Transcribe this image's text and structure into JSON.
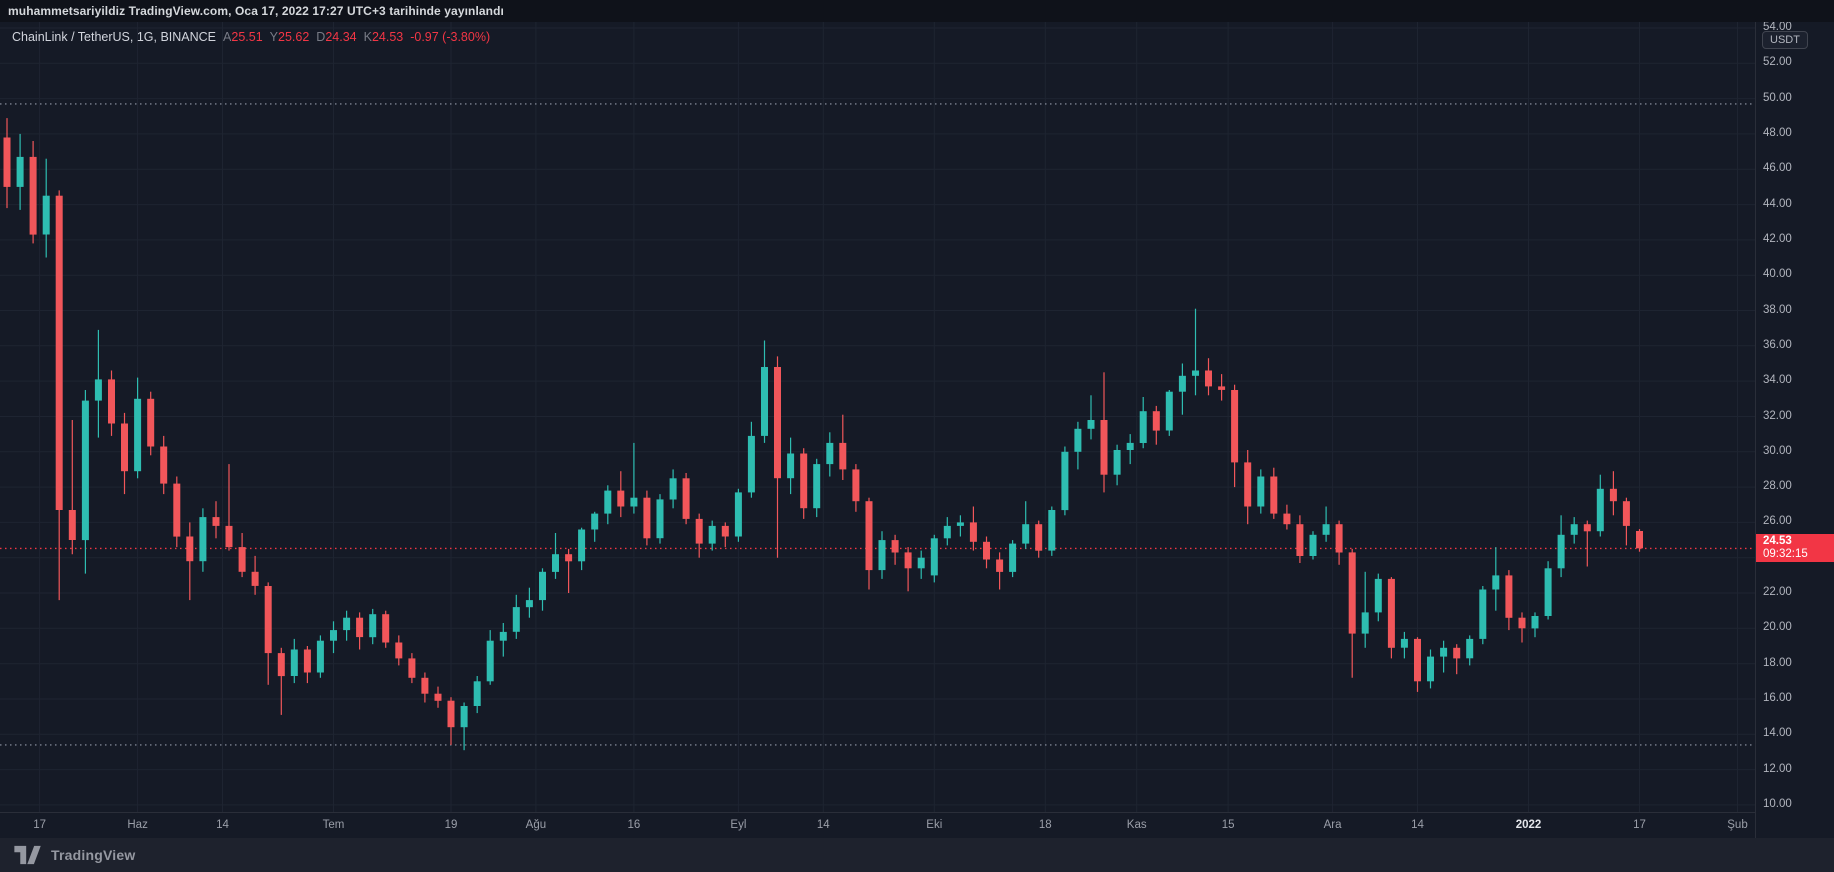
{
  "topbar": {
    "text": "muhammetsariyildiz TradingView.com, Oca 17, 2022 17:27 UTC+3 tarihinde yayınlandı"
  },
  "legend": {
    "symbol": "ChainLink / TetherUS, 1G, BINANCE",
    "ohlc": [
      {
        "k": "A",
        "v": "25.51"
      },
      {
        "k": "Y",
        "v": "25.62"
      },
      {
        "k": "D",
        "v": "24.34"
      },
      {
        "k": "K",
        "v": "24.53"
      }
    ],
    "change": "-0.97 (-3.80%)"
  },
  "price_axis": {
    "currency": "USDT",
    "min": 10,
    "max": 54,
    "step": 2,
    "last_price": "24.53",
    "countdown": "09:32:15"
  },
  "levels": {
    "range_high_dotted": 49.7,
    "range_low_dotted": 13.4,
    "last_price_line": 24.53
  },
  "time_axis": [
    {
      "t": "17",
      "i": 2.5
    },
    {
      "t": "Haz",
      "i": 10
    },
    {
      "t": "14",
      "i": 16.5
    },
    {
      "t": "Tem",
      "i": 25
    },
    {
      "t": "19",
      "i": 34
    },
    {
      "t": "Ağu",
      "i": 40.5
    },
    {
      "t": "16",
      "i": 48
    },
    {
      "t": "Eyl",
      "i": 56
    },
    {
      "t": "14",
      "i": 62.5
    },
    {
      "t": "Eki",
      "i": 71
    },
    {
      "t": "18",
      "i": 79.5
    },
    {
      "t": "Kas",
      "i": 86.5
    },
    {
      "t": "15",
      "i": 93.5
    },
    {
      "t": "Ara",
      "i": 101.5
    },
    {
      "t": "14",
      "i": 108
    },
    {
      "t": "2022",
      "i": 116.5,
      "bright": true
    },
    {
      "t": "17",
      "i": 125
    },
    {
      "t": "Şub",
      "i": 132.5
    }
  ],
  "footer": {
    "brand": "TradingView"
  },
  "colors": {
    "up": "#2ebdb1",
    "down": "#f1565a",
    "accent_red": "#f23645",
    "grid": "#1e2431",
    "dotted_gray": "#7c8290",
    "bg": "#151a26"
  },
  "chart_data": {
    "type": "candlestick",
    "title": "ChainLink / TetherUS, 1G, BINANCE",
    "symbol": "LINK/USDT",
    "interval": "1G (daily, shown as 2-day aggregates)",
    "ylabel": "Price (USDT)",
    "ylim": [
      10,
      54
    ],
    "grid": true,
    "last": {
      "open": 25.51,
      "high": 25.62,
      "low": 24.34,
      "close": 24.53,
      "change": -0.97,
      "change_pct": -3.8
    },
    "candles": [
      [
        "2021-05-12",
        47.8,
        48.9,
        43.8,
        45.0
      ],
      [
        "2021-05-14",
        45.0,
        48.0,
        43.7,
        46.7
      ],
      [
        "2021-05-16",
        46.7,
        47.6,
        41.8,
        42.3
      ],
      [
        "2021-05-18",
        42.3,
        46.6,
        41.0,
        44.5
      ],
      [
        "2021-05-20",
        44.5,
        44.8,
        21.6,
        26.7
      ],
      [
        "2021-05-22",
        26.7,
        31.8,
        24.2,
        25.0
      ],
      [
        "2021-05-24",
        25.0,
        33.5,
        23.1,
        32.9
      ],
      [
        "2021-05-26",
        32.9,
        36.9,
        30.8,
        34.1
      ],
      [
        "2021-05-28",
        34.1,
        34.6,
        30.9,
        31.6
      ],
      [
        "2021-05-30",
        31.6,
        32.2,
        27.6,
        28.9
      ],
      [
        "2021-06-01",
        28.9,
        34.2,
        28.5,
        33.0
      ],
      [
        "2021-06-03",
        33.0,
        33.4,
        29.8,
        30.3
      ],
      [
        "2021-06-05",
        30.3,
        30.9,
        27.6,
        28.2
      ],
      [
        "2021-06-07",
        28.2,
        28.6,
        24.6,
        25.2
      ],
      [
        "2021-06-09",
        25.2,
        26.0,
        21.6,
        23.8
      ],
      [
        "2021-06-11",
        23.8,
        26.8,
        23.2,
        26.3
      ],
      [
        "2021-06-13",
        26.3,
        27.2,
        25.1,
        25.8
      ],
      [
        "2021-06-15",
        25.8,
        29.3,
        24.4,
        24.6
      ],
      [
        "2021-06-17",
        24.6,
        25.4,
        22.9,
        23.2
      ],
      [
        "2021-06-19",
        23.2,
        24.1,
        21.9,
        22.4
      ],
      [
        "2021-06-21",
        22.4,
        22.6,
        16.8,
        18.6
      ],
      [
        "2021-06-23",
        18.6,
        18.9,
        15.1,
        17.3
      ],
      [
        "2021-06-25",
        17.3,
        19.4,
        16.9,
        18.8
      ],
      [
        "2021-06-27",
        18.8,
        19.0,
        16.9,
        17.5
      ],
      [
        "2021-06-29",
        17.5,
        19.6,
        17.2,
        19.3
      ],
      [
        "2021-07-01",
        19.3,
        20.4,
        18.6,
        19.9
      ],
      [
        "2021-07-03",
        19.9,
        21.0,
        19.3,
        20.6
      ],
      [
        "2021-07-05",
        20.6,
        20.9,
        18.8,
        19.5
      ],
      [
        "2021-07-07",
        19.5,
        21.1,
        19.1,
        20.8
      ],
      [
        "2021-07-09",
        20.8,
        21.0,
        18.9,
        19.2
      ],
      [
        "2021-07-11",
        19.2,
        19.6,
        17.9,
        18.3
      ],
      [
        "2021-07-13",
        18.3,
        18.6,
        16.9,
        17.2
      ],
      [
        "2021-07-15",
        17.2,
        17.5,
        15.8,
        16.3
      ],
      [
        "2021-07-17",
        16.3,
        16.7,
        15.5,
        15.9
      ],
      [
        "2021-07-19",
        15.9,
        16.1,
        13.4,
        14.4
      ],
      [
        "2021-07-21",
        14.4,
        15.8,
        13.1,
        15.6
      ],
      [
        "2021-07-23",
        15.6,
        17.3,
        15.2,
        17.0
      ],
      [
        "2021-07-25",
        17.0,
        19.9,
        16.8,
        19.3
      ],
      [
        "2021-07-27",
        19.3,
        20.3,
        18.4,
        19.8
      ],
      [
        "2021-07-29",
        19.8,
        21.9,
        19.4,
        21.2
      ],
      [
        "2021-07-31",
        21.2,
        22.3,
        20.6,
        21.6
      ],
      [
        "2021-08-02",
        21.6,
        23.4,
        21.0,
        23.2
      ],
      [
        "2021-08-04",
        23.2,
        25.4,
        22.8,
        24.2
      ],
      [
        "2021-08-06",
        24.2,
        24.5,
        22.0,
        23.8
      ],
      [
        "2021-08-08",
        23.8,
        25.7,
        23.3,
        25.6
      ],
      [
        "2021-08-10",
        25.6,
        26.6,
        24.9,
        26.5
      ],
      [
        "2021-08-12",
        26.5,
        28.1,
        25.9,
        27.8
      ],
      [
        "2021-08-14",
        27.8,
        28.9,
        26.3,
        26.9
      ],
      [
        "2021-08-16",
        26.9,
        30.5,
        26.5,
        27.4
      ],
      [
        "2021-08-18",
        27.4,
        27.8,
        24.7,
        25.1
      ],
      [
        "2021-08-20",
        25.1,
        27.6,
        24.8,
        27.3
      ],
      [
        "2021-08-22",
        27.3,
        29.0,
        26.8,
        28.5
      ],
      [
        "2021-08-24",
        28.5,
        28.8,
        25.9,
        26.2
      ],
      [
        "2021-08-26",
        26.2,
        26.5,
        24.0,
        24.8
      ],
      [
        "2021-08-28",
        24.8,
        26.1,
        24.4,
        25.8
      ],
      [
        "2021-08-30",
        25.8,
        26.0,
        24.6,
        25.2
      ],
      [
        "2021-09-01",
        25.2,
        27.9,
        24.9,
        27.7
      ],
      [
        "2021-09-03",
        27.7,
        31.7,
        27.4,
        30.9
      ],
      [
        "2021-09-05",
        30.9,
        36.3,
        30.5,
        34.8
      ],
      [
        "2021-09-07",
        34.8,
        35.4,
        24.0,
        28.5
      ],
      [
        "2021-09-09",
        28.5,
        30.8,
        27.6,
        29.9
      ],
      [
        "2021-09-11",
        29.9,
        30.2,
        26.2,
        26.8
      ],
      [
        "2021-09-13",
        26.8,
        29.6,
        26.3,
        29.3
      ],
      [
        "2021-09-15",
        29.3,
        31.1,
        28.6,
        30.5
      ],
      [
        "2021-09-17",
        30.5,
        32.1,
        28.4,
        29.0
      ],
      [
        "2021-09-19",
        29.0,
        29.3,
        26.6,
        27.2
      ],
      [
        "2021-09-21",
        27.2,
        27.4,
        22.2,
        23.3
      ],
      [
        "2021-09-23",
        23.3,
        25.5,
        22.8,
        25.0
      ],
      [
        "2021-09-25",
        25.0,
        25.3,
        23.6,
        24.3
      ],
      [
        "2021-09-27",
        24.3,
        24.6,
        22.1,
        23.4
      ],
      [
        "2021-09-29",
        23.4,
        24.4,
        22.8,
        24.0
      ],
      [
        "2021-10-01",
        23.0,
        25.3,
        22.6,
        25.1
      ],
      [
        "2021-10-03",
        25.1,
        26.3,
        24.7,
        25.8
      ],
      [
        "2021-10-05",
        25.8,
        26.4,
        25.2,
        26.0
      ],
      [
        "2021-10-07",
        26.0,
        26.9,
        24.4,
        24.9
      ],
      [
        "2021-10-09",
        24.9,
        25.2,
        23.4,
        23.9
      ],
      [
        "2021-10-11",
        23.9,
        24.3,
        22.2,
        23.2
      ],
      [
        "2021-10-13",
        23.2,
        25.0,
        22.9,
        24.8
      ],
      [
        "2021-10-15",
        24.8,
        27.2,
        24.5,
        25.9
      ],
      [
        "2021-10-17",
        25.9,
        26.1,
        24.0,
        24.4
      ],
      [
        "2021-10-19",
        24.4,
        26.9,
        24.1,
        26.7
      ],
      [
        "2021-10-21",
        26.7,
        30.3,
        26.4,
        30.0
      ],
      [
        "2021-10-23",
        30.0,
        31.7,
        29.0,
        31.3
      ],
      [
        "2021-10-25",
        31.3,
        33.2,
        30.7,
        31.8
      ],
      [
        "2021-10-27",
        31.8,
        34.5,
        27.7,
        28.7
      ],
      [
        "2021-10-29",
        28.7,
        30.4,
        28.1,
        30.1
      ],
      [
        "2021-10-31",
        30.1,
        31.0,
        29.3,
        30.5
      ],
      [
        "2021-11-02",
        30.5,
        33.1,
        30.2,
        32.3
      ],
      [
        "2021-11-04",
        32.3,
        32.6,
        30.4,
        31.2
      ],
      [
        "2021-11-06",
        31.2,
        33.5,
        30.9,
        33.4
      ],
      [
        "2021-11-08",
        33.4,
        35.0,
        32.1,
        34.3
      ],
      [
        "2021-11-10",
        34.3,
        38.1,
        33.2,
        34.6
      ],
      [
        "2021-11-12",
        34.6,
        35.3,
        33.2,
        33.7
      ],
      [
        "2021-11-14",
        33.7,
        34.4,
        32.9,
        33.5
      ],
      [
        "2021-11-16",
        33.5,
        33.8,
        28.0,
        29.4
      ],
      [
        "2021-11-18",
        29.4,
        30.1,
        25.9,
        26.9
      ],
      [
        "2021-11-20",
        26.9,
        29.0,
        26.5,
        28.6
      ],
      [
        "2021-11-22",
        28.6,
        29.1,
        26.2,
        26.5
      ],
      [
        "2021-11-24",
        26.5,
        27.0,
        25.6,
        25.9
      ],
      [
        "2021-11-26",
        25.9,
        26.4,
        23.7,
        24.1
      ],
      [
        "2021-11-28",
        24.1,
        25.5,
        23.9,
        25.3
      ],
      [
        "2021-11-30",
        25.3,
        26.9,
        24.9,
        25.9
      ],
      [
        "2021-12-02",
        25.9,
        26.1,
        23.6,
        24.3
      ],
      [
        "2021-12-04",
        24.3,
        24.5,
        17.2,
        19.7
      ],
      [
        "2021-12-06",
        19.7,
        23.2,
        18.9,
        20.9
      ],
      [
        "2021-12-08",
        20.9,
        23.1,
        20.4,
        22.8
      ],
      [
        "2021-12-10",
        22.8,
        22.9,
        18.3,
        18.9
      ],
      [
        "2021-12-12",
        18.9,
        19.8,
        18.3,
        19.4
      ],
      [
        "2021-12-14",
        19.4,
        19.5,
        16.4,
        17.0
      ],
      [
        "2021-12-16",
        17.0,
        18.8,
        16.6,
        18.4
      ],
      [
        "2021-12-18",
        18.4,
        19.3,
        17.5,
        18.9
      ],
      [
        "2021-12-20",
        18.9,
        19.1,
        17.4,
        18.3
      ],
      [
        "2021-12-22",
        18.3,
        19.6,
        17.9,
        19.4
      ],
      [
        "2021-12-24",
        19.4,
        22.4,
        19.1,
        22.2
      ],
      [
        "2021-12-26",
        22.2,
        24.6,
        21.0,
        23.0
      ],
      [
        "2021-12-28",
        23.0,
        23.3,
        19.9,
        20.6
      ],
      [
        "2021-12-30",
        20.6,
        20.9,
        19.2,
        20.0
      ],
      [
        "2022-01-01",
        20.0,
        20.9,
        19.5,
        20.7
      ],
      [
        "2022-01-03",
        20.7,
        23.8,
        20.5,
        23.4
      ],
      [
        "2022-01-05",
        23.4,
        26.4,
        22.9,
        25.3
      ],
      [
        "2022-01-07",
        25.3,
        26.3,
        24.8,
        25.9
      ],
      [
        "2022-01-09",
        25.9,
        26.1,
        23.5,
        25.5
      ],
      [
        "2022-01-11",
        25.5,
        28.7,
        25.2,
        27.9
      ],
      [
        "2022-01-13",
        27.9,
        28.9,
        26.4,
        27.2
      ],
      [
        "2022-01-15",
        27.2,
        27.4,
        24.7,
        25.8
      ],
      [
        "2022-01-17",
        25.51,
        25.62,
        24.34,
        24.53
      ]
    ]
  }
}
